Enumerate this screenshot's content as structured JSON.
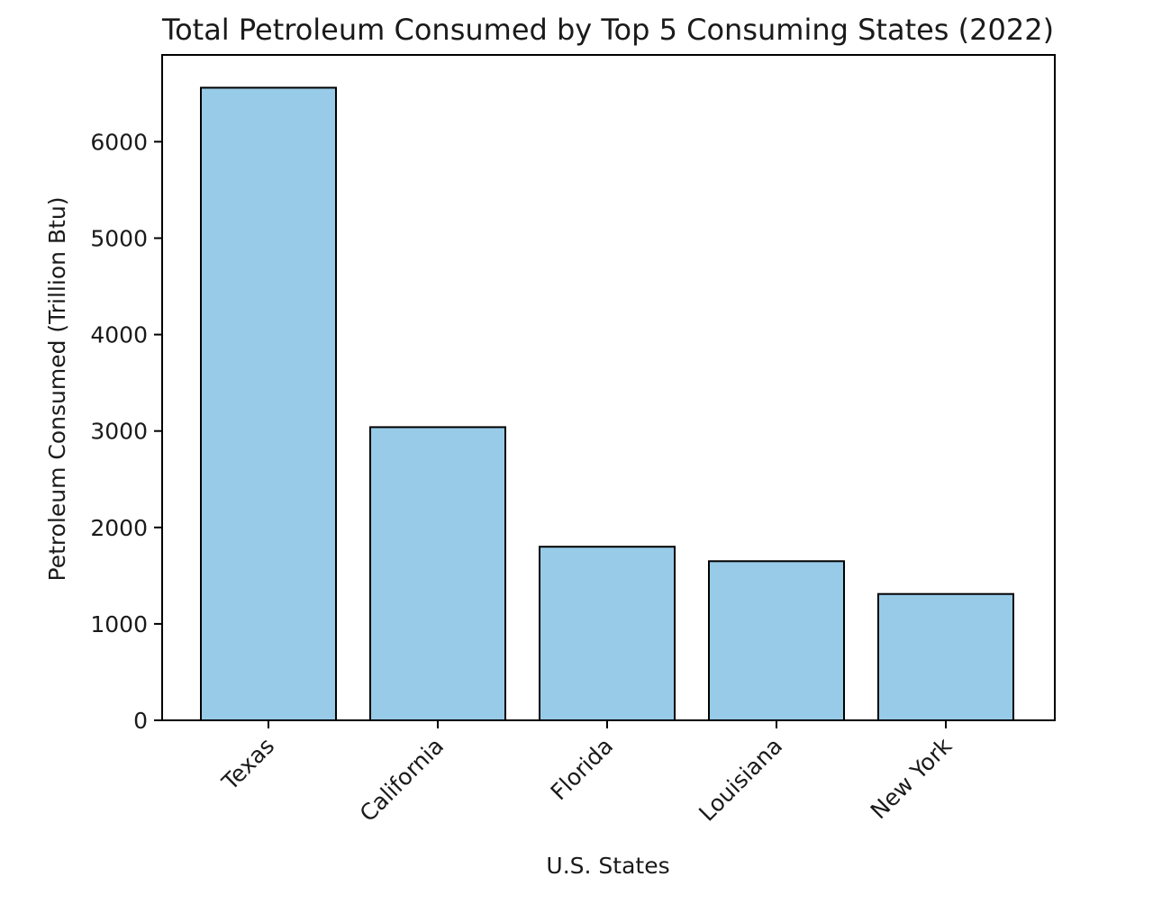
{
  "chart_data": {
    "type": "bar",
    "title": "Total Petroleum Consumed by Top 5 Consuming States (2022)",
    "xlabel": "U.S. States",
    "ylabel": "Petroleum Consumed (Trillion Btu)",
    "categories": [
      "Texas",
      "California",
      "Florida",
      "Louisiana",
      "New York"
    ],
    "values": [
      6560,
      3040,
      1800,
      1650,
      1310
    ],
    "ylim": [
      0,
      6900
    ],
    "yticks": [
      0,
      1000,
      2000,
      3000,
      4000,
      5000,
      6000
    ],
    "ytick_labels": [
      "0",
      "1000",
      "2000",
      "3000",
      "4000",
      "5000",
      "6000"
    ],
    "grid": false,
    "bar_color": "#97cbe8",
    "edge_color": "#000000"
  }
}
